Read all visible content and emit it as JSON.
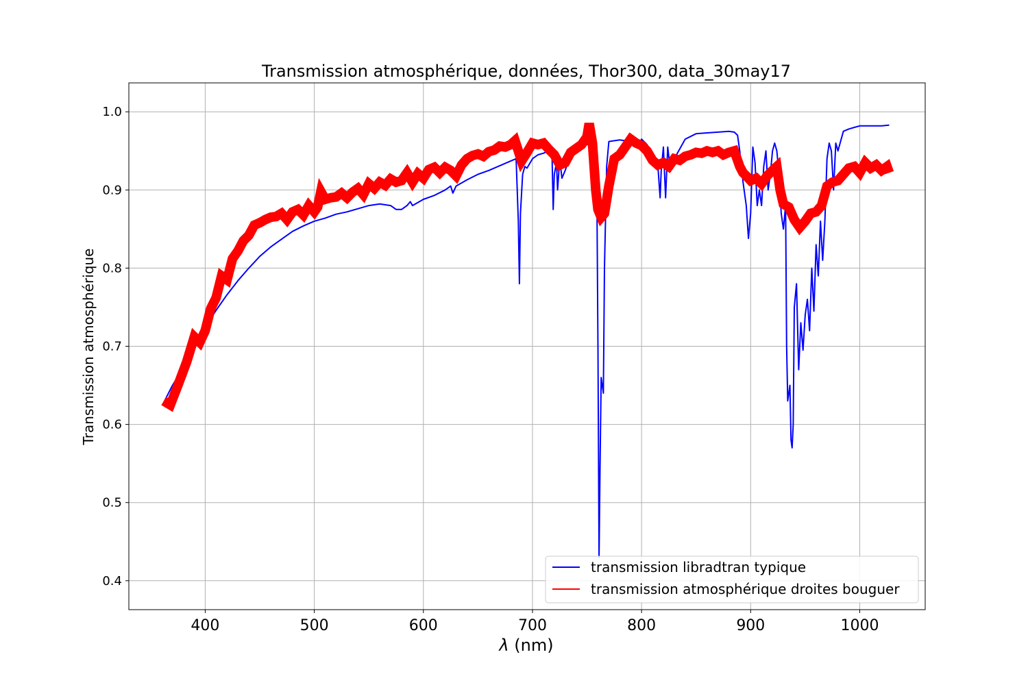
{
  "chart_data": {
    "type": "line",
    "title": "Transmission atmosphérique, données, Thor300, data_30may17",
    "xlabel_symbol": "λ",
    "xlabel_unit": " (nm)",
    "ylabel": "Transmission atmosphérique",
    "xlim": [
      330,
      1060
    ],
    "ylim": [
      0.363,
      1.037
    ],
    "xticks": [
      400,
      500,
      600,
      700,
      800,
      900,
      1000
    ],
    "yticks": [
      0.4,
      0.5,
      0.6,
      0.7,
      0.8,
      0.9,
      1.0
    ],
    "xtick_labels": [
      "400",
      "500",
      "600",
      "700",
      "800",
      "900",
      "1000"
    ],
    "ytick_labels": [
      "0.4",
      "0.5",
      "0.6",
      "0.7",
      "0.8",
      "0.9",
      "1.0"
    ],
    "grid": true,
    "legend_position": "lower right",
    "series": [
      {
        "name": "transmission libradtran typique",
        "color": "#0000ff",
        "x": [
          362,
          370,
          380,
          390,
          400,
          410,
          420,
          430,
          440,
          450,
          460,
          470,
          480,
          490,
          500,
          510,
          520,
          530,
          540,
          550,
          560,
          570,
          575,
          580,
          585,
          588,
          590,
          600,
          610,
          620,
          625,
          627,
          630,
          640,
          650,
          660,
          670,
          680,
          685,
          687,
          688,
          689,
          691,
          693,
          695,
          700,
          705,
          710,
          715,
          718,
          719,
          720,
          722,
          723,
          725,
          727,
          730,
          735,
          740,
          750,
          755,
          758,
          759,
          760,
          761,
          762,
          763,
          765,
          766,
          768,
          770,
          780,
          790,
          795,
          797,
          800,
          805,
          810,
          815,
          817,
          818,
          820,
          822,
          824,
          826,
          830,
          840,
          850,
          860,
          870,
          880,
          885,
          888,
          890,
          893,
          896,
          898,
          900,
          902,
          904,
          906,
          908,
          910,
          912,
          914,
          916,
          918,
          920,
          922,
          924,
          926,
          928,
          930,
          932,
          933,
          934,
          936,
          937,
          938,
          939,
          940,
          942,
          944,
          946,
          948,
          950,
          952,
          954,
          956,
          958,
          960,
          962,
          964,
          966,
          968,
          970,
          972,
          974,
          976,
          978,
          980,
          985,
          990,
          995,
          1000,
          1010,
          1020,
          1027
        ],
        "y": [
          0.628,
          0.65,
          0.673,
          0.697,
          0.724,
          0.746,
          0.766,
          0.784,
          0.8,
          0.815,
          0.827,
          0.837,
          0.847,
          0.854,
          0.86,
          0.864,
          0.869,
          0.872,
          0.876,
          0.88,
          0.882,
          0.88,
          0.875,
          0.875,
          0.88,
          0.885,
          0.88,
          0.888,
          0.893,
          0.9,
          0.905,
          0.896,
          0.905,
          0.913,
          0.92,
          0.925,
          0.931,
          0.937,
          0.94,
          0.86,
          0.78,
          0.87,
          0.92,
          0.93,
          0.928,
          0.94,
          0.945,
          0.947,
          0.95,
          0.94,
          0.875,
          0.92,
          0.935,
          0.9,
          0.94,
          0.915,
          0.925,
          0.945,
          0.955,
          0.958,
          0.96,
          0.96,
          0.9,
          0.7,
          0.43,
          0.55,
          0.66,
          0.64,
          0.8,
          0.93,
          0.962,
          0.964,
          0.962,
          0.96,
          0.955,
          0.965,
          0.958,
          0.945,
          0.93,
          0.89,
          0.925,
          0.955,
          0.89,
          0.955,
          0.93,
          0.94,
          0.965,
          0.972,
          0.973,
          0.974,
          0.975,
          0.974,
          0.97,
          0.95,
          0.91,
          0.88,
          0.838,
          0.87,
          0.955,
          0.935,
          0.88,
          0.9,
          0.88,
          0.93,
          0.95,
          0.9,
          0.92,
          0.95,
          0.96,
          0.95,
          0.92,
          0.87,
          0.85,
          0.88,
          0.7,
          0.63,
          0.65,
          0.58,
          0.57,
          0.6,
          0.75,
          0.78,
          0.67,
          0.73,
          0.695,
          0.74,
          0.76,
          0.72,
          0.8,
          0.745,
          0.83,
          0.79,
          0.86,
          0.81,
          0.86,
          0.94,
          0.96,
          0.95,
          0.9,
          0.96,
          0.95,
          0.975,
          0.978,
          0.98,
          0.982,
          0.982,
          0.982,
          0.983
        ]
      },
      {
        "name": "transmission atmosphérique droites bouguer",
        "color": "#ff0000",
        "x": [
          362,
          368,
          375,
          383,
          390,
          395,
          400,
          405,
          410,
          415,
          420,
          425,
          430,
          435,
          440,
          445,
          450,
          455,
          460,
          465,
          470,
          475,
          480,
          485,
          490,
          495,
          500,
          503,
          506,
          510,
          515,
          520,
          525,
          530,
          535,
          540,
          545,
          550,
          555,
          560,
          565,
          570,
          575,
          580,
          585,
          590,
          595,
          600,
          605,
          610,
          615,
          620,
          625,
          630,
          635,
          640,
          645,
          650,
          655,
          660,
          665,
          670,
          675,
          680,
          684,
          687,
          690,
          695,
          700,
          705,
          710,
          715,
          720,
          725,
          730,
          735,
          740,
          745,
          750,
          752,
          755,
          758,
          760,
          763,
          766,
          770,
          775,
          780,
          785,
          790,
          795,
          800,
          805,
          810,
          815,
          820,
          825,
          830,
          835,
          840,
          845,
          850,
          855,
          860,
          865,
          870,
          875,
          880,
          885,
          890,
          893,
          896,
          900,
          905,
          910,
          915,
          920,
          924,
          927,
          930,
          935,
          940,
          945,
          950,
          955,
          960,
          965,
          970,
          975,
          980,
          985,
          990,
          995,
          1000,
          1005,
          1010,
          1015,
          1020,
          1025,
          1027
        ],
        "y": [
          0.63,
          0.625,
          0.65,
          0.68,
          0.712,
          0.705,
          0.72,
          0.748,
          0.762,
          0.79,
          0.785,
          0.812,
          0.822,
          0.835,
          0.842,
          0.855,
          0.858,
          0.862,
          0.865,
          0.866,
          0.87,
          0.862,
          0.872,
          0.875,
          0.868,
          0.88,
          0.872,
          0.878,
          0.898,
          0.888,
          0.89,
          0.891,
          0.896,
          0.89,
          0.897,
          0.902,
          0.894,
          0.908,
          0.902,
          0.91,
          0.906,
          0.914,
          0.91,
          0.912,
          0.922,
          0.91,
          0.921,
          0.915,
          0.926,
          0.929,
          0.922,
          0.929,
          0.925,
          0.918,
          0.932,
          0.94,
          0.944,
          0.946,
          0.943,
          0.949,
          0.951,
          0.956,
          0.955,
          0.958,
          0.963,
          0.95,
          0.937,
          0.948,
          0.96,
          0.958,
          0.96,
          0.952,
          0.945,
          0.932,
          0.935,
          0.948,
          0.953,
          0.958,
          0.968,
          0.985,
          0.96,
          0.9,
          0.875,
          0.865,
          0.87,
          0.905,
          0.94,
          0.945,
          0.955,
          0.965,
          0.96,
          0.957,
          0.95,
          0.938,
          0.932,
          0.935,
          0.93,
          0.94,
          0.938,
          0.943,
          0.945,
          0.948,
          0.947,
          0.95,
          0.948,
          0.95,
          0.945,
          0.948,
          0.95,
          0.93,
          0.922,
          0.918,
          0.912,
          0.915,
          0.908,
          0.918,
          0.925,
          0.93,
          0.9,
          0.882,
          0.878,
          0.862,
          0.852,
          0.86,
          0.87,
          0.872,
          0.88,
          0.905,
          0.91,
          0.912,
          0.92,
          0.928,
          0.93,
          0.922,
          0.935,
          0.928,
          0.932,
          0.925,
          0.93,
          0.922
        ]
      }
    ]
  }
}
